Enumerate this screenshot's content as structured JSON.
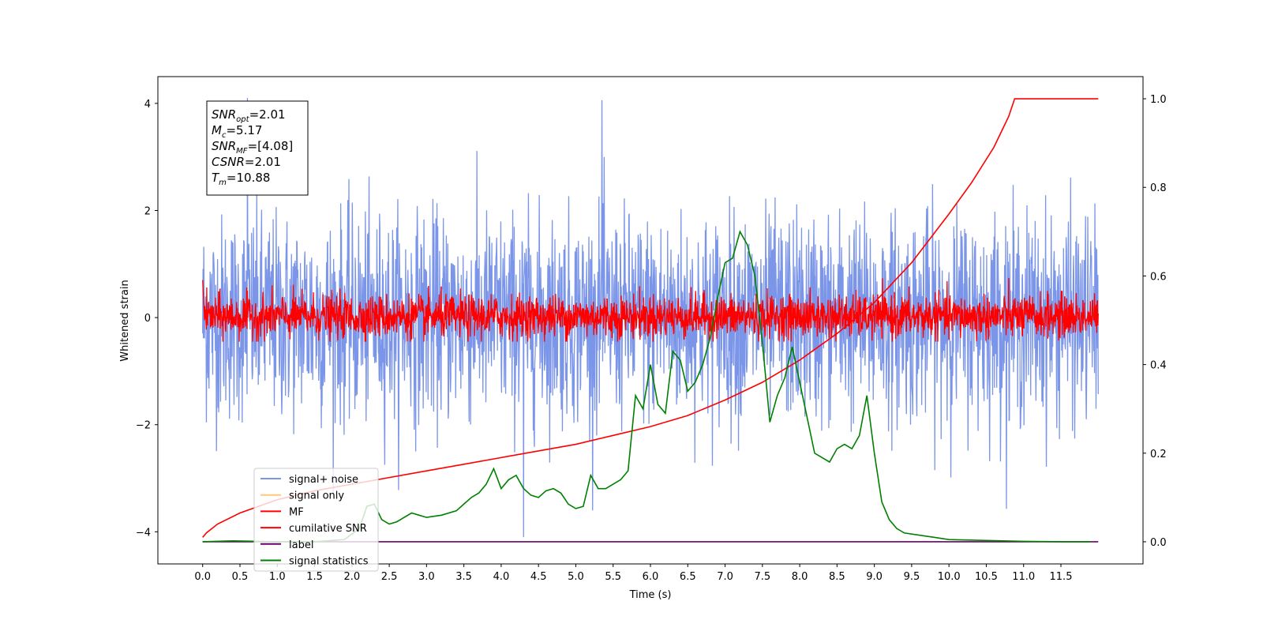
{
  "chart_data": {
    "type": "line",
    "xlabel": "Time (s)",
    "ylabel": "Whitened strain",
    "xlim": [
      -0.6,
      12.6
    ],
    "ylim": [
      -4.6,
      4.5
    ],
    "y2lim": [
      -0.05,
      1.05
    ],
    "xticks": [
      "0.0",
      "0.5",
      "1.0",
      "1.5",
      "2.0",
      "2.5",
      "3.0",
      "3.5",
      "4.0",
      "4.5",
      "5.0",
      "5.5",
      "6.0",
      "6.5",
      "7.0",
      "7.5",
      "8.0",
      "8.5",
      "9.0",
      "9.5",
      "10.0",
      "10.5",
      "11.0",
      "11.5"
    ],
    "yticks": [
      "4",
      "2",
      "0",
      "−2",
      "−4"
    ],
    "y2ticks": [
      "1.0",
      "0.8",
      "0.6",
      "0.4",
      "0.2",
      "0.0"
    ],
    "grid": false,
    "legend_position": "lower-left",
    "stats_box": [
      {
        "sym": "SNR",
        "sub": "opt",
        "val": "=2.01"
      },
      {
        "sym": "M",
        "sub": "c",
        "val": "=5.17"
      },
      {
        "sym": "SNR",
        "sub": "MF",
        "val": "=[4.08]"
      },
      {
        "sym": "CSNR",
        "sub": "",
        "val": "=2.01"
      },
      {
        "sym": "T",
        "sub": "m",
        "val": "=10.88"
      }
    ],
    "series": [
      {
        "name": "signal+ noise",
        "color": "#7b95e8",
        "axis": "left",
        "style": "noise",
        "t_range": [
          0.0,
          12.0
        ],
        "center": 0.0,
        "typical_range": [
          -2.3,
          2.4
        ],
        "max": 4.1,
        "min": -4.1
      },
      {
        "name": "signal only",
        "color": "#ffc77a",
        "axis": "left",
        "style": "hidden"
      },
      {
        "name": "MF",
        "color": "#ff0000",
        "axis": "left",
        "style": "noise",
        "t_range": [
          0.0,
          12.0
        ],
        "center": 0.0,
        "typical_range": [
          -0.45,
          0.9
        ]
      },
      {
        "name": "cumilative SNR",
        "color": "#ff0000",
        "axis": "right",
        "x": [
          0.0,
          0.05,
          0.2,
          0.5,
          1.0,
          1.5,
          2.0,
          2.5,
          3.0,
          3.5,
          4.0,
          4.5,
          5.0,
          5.5,
          6.0,
          6.5,
          7.0,
          7.5,
          8.0,
          8.5,
          9.0,
          9.5,
          10.0,
          10.3,
          10.6,
          10.8,
          10.88,
          12.0
        ],
        "y": [
          0.01,
          0.02,
          0.04,
          0.065,
          0.095,
          0.115,
          0.13,
          0.145,
          0.16,
          0.175,
          0.19,
          0.205,
          0.22,
          0.24,
          0.26,
          0.285,
          0.32,
          0.36,
          0.41,
          0.47,
          0.54,
          0.63,
          0.74,
          0.81,
          0.89,
          0.96,
          1.0,
          1.0
        ]
      },
      {
        "name": "label",
        "color": "#6a006a",
        "axis": "right",
        "x": [
          0.0,
          12.0
        ],
        "y": [
          0.0,
          0.0
        ]
      },
      {
        "name": "signal statistics",
        "color": "#008000",
        "axis": "right",
        "x": [
          0.0,
          0.4,
          1.0,
          1.5,
          1.9,
          2.1,
          2.2,
          2.3,
          2.4,
          2.5,
          2.6,
          2.8,
          2.9,
          3.0,
          3.2,
          3.4,
          3.5,
          3.6,
          3.7,
          3.8,
          3.9,
          4.0,
          4.1,
          4.2,
          4.3,
          4.4,
          4.5,
          4.6,
          4.7,
          4.8,
          4.9,
          5.0,
          5.1,
          5.2,
          5.3,
          5.4,
          5.5,
          5.6,
          5.7,
          5.8,
          5.9,
          6.0,
          6.1,
          6.2,
          6.3,
          6.4,
          6.5,
          6.6,
          6.7,
          6.8,
          6.9,
          7.0,
          7.1,
          7.2,
          7.3,
          7.4,
          7.5,
          7.6,
          7.7,
          7.8,
          7.9,
          8.0,
          8.2,
          8.4,
          8.5,
          8.6,
          8.7,
          8.8,
          8.9,
          9.0,
          9.1,
          9.2,
          9.3,
          9.4,
          9.6,
          9.8,
          10.0,
          10.5,
          11.0,
          11.5,
          11.9
        ],
        "y": [
          0.0,
          0.002,
          0.0,
          0.0,
          0.005,
          0.03,
          0.08,
          0.085,
          0.05,
          0.04,
          0.045,
          0.065,
          0.06,
          0.055,
          0.06,
          0.07,
          0.085,
          0.1,
          0.11,
          0.13,
          0.165,
          0.12,
          0.14,
          0.15,
          0.12,
          0.105,
          0.1,
          0.115,
          0.12,
          0.11,
          0.085,
          0.075,
          0.08,
          0.15,
          0.12,
          0.12,
          0.13,
          0.14,
          0.16,
          0.33,
          0.3,
          0.4,
          0.31,
          0.29,
          0.43,
          0.41,
          0.34,
          0.36,
          0.4,
          0.46,
          0.55,
          0.63,
          0.64,
          0.7,
          0.67,
          0.6,
          0.45,
          0.27,
          0.33,
          0.37,
          0.44,
          0.36,
          0.2,
          0.18,
          0.21,
          0.22,
          0.21,
          0.24,
          0.33,
          0.2,
          0.09,
          0.05,
          0.03,
          0.02,
          0.015,
          0.01,
          0.005,
          0.003,
          0.001,
          0.0,
          0.0
        ]
      }
    ]
  }
}
